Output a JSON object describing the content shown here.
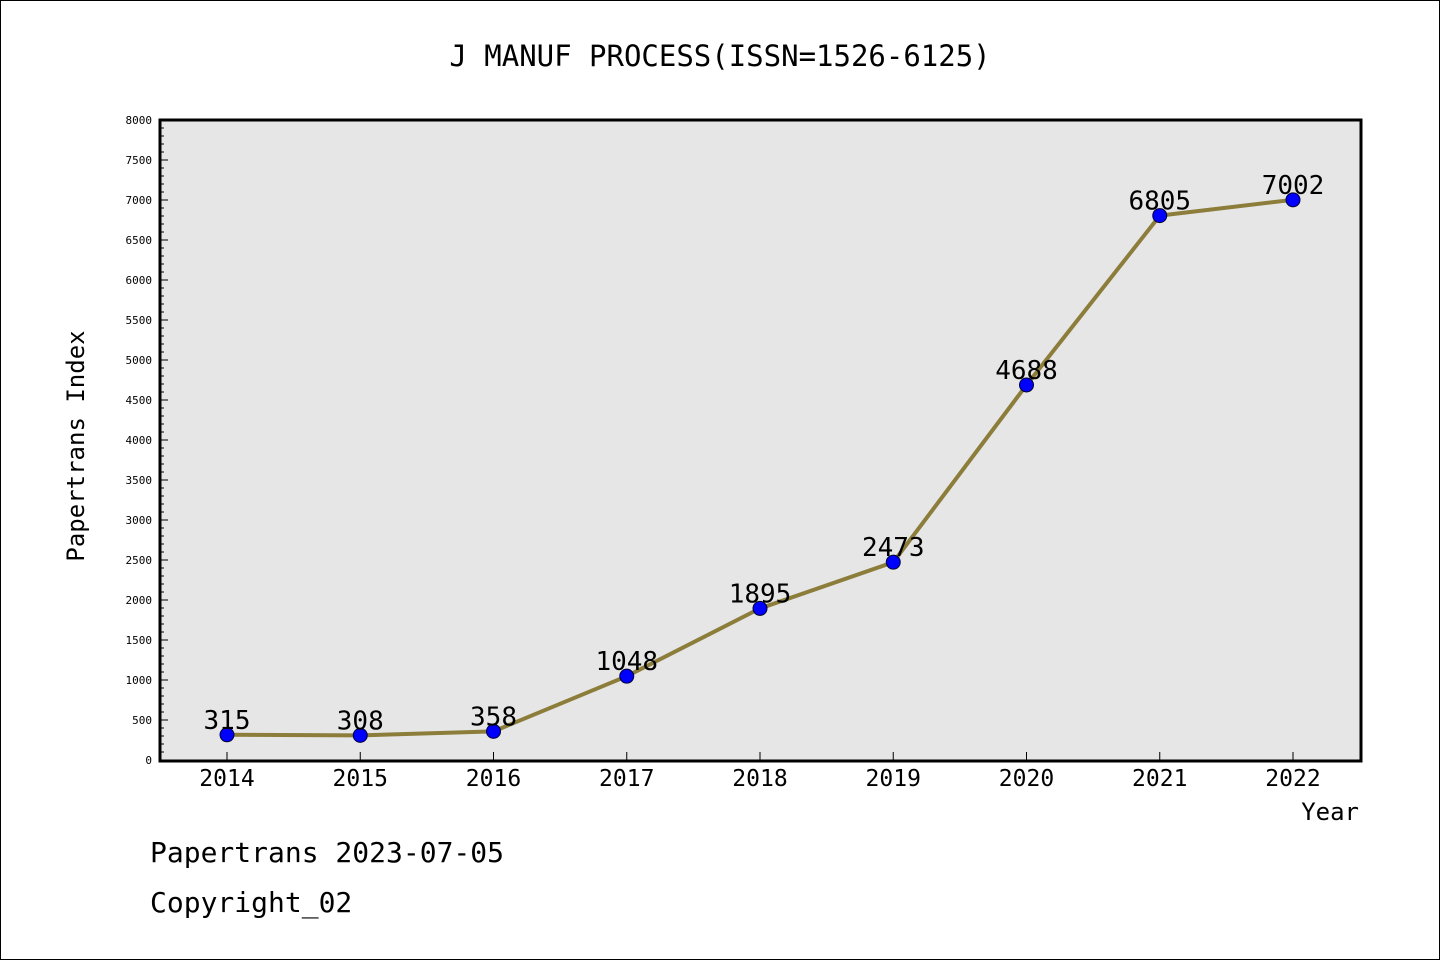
{
  "chart_data": {
    "type": "line",
    "title": "J MANUF PROCESS(ISSN=1526-6125)",
    "xlabel": "Year",
    "ylabel": "Papertrans Index",
    "categories": [
      "2014",
      "2015",
      "2016",
      "2017",
      "2018",
      "2019",
      "2020",
      "2021",
      "2022"
    ],
    "series": [
      {
        "values": [
          315,
          308,
          358,
          1048,
          1895,
          2473,
          4688,
          6805,
          7002
        ]
      }
    ],
    "data_labels": [
      "315",
      "308",
      "358",
      "1048",
      "1895",
      "2473",
      "4688",
      "6805",
      "7002"
    ],
    "ylim": [
      0,
      8000
    ],
    "y_ticks": [
      "0",
      "500",
      "1000",
      "1500",
      "2000",
      "2500",
      "3000",
      "3500",
      "4000",
      "4500",
      "5000",
      "5500",
      "6000",
      "6500",
      "7000",
      "7500",
      "8000"
    ],
    "grid": false,
    "plot_background": "#e6e6e6",
    "line_color": "#8c7d3a",
    "marker_color": "#0000ff"
  },
  "footer": {
    "source": "Papertrans 2023-07-05",
    "copyright": "Copyright_02"
  }
}
